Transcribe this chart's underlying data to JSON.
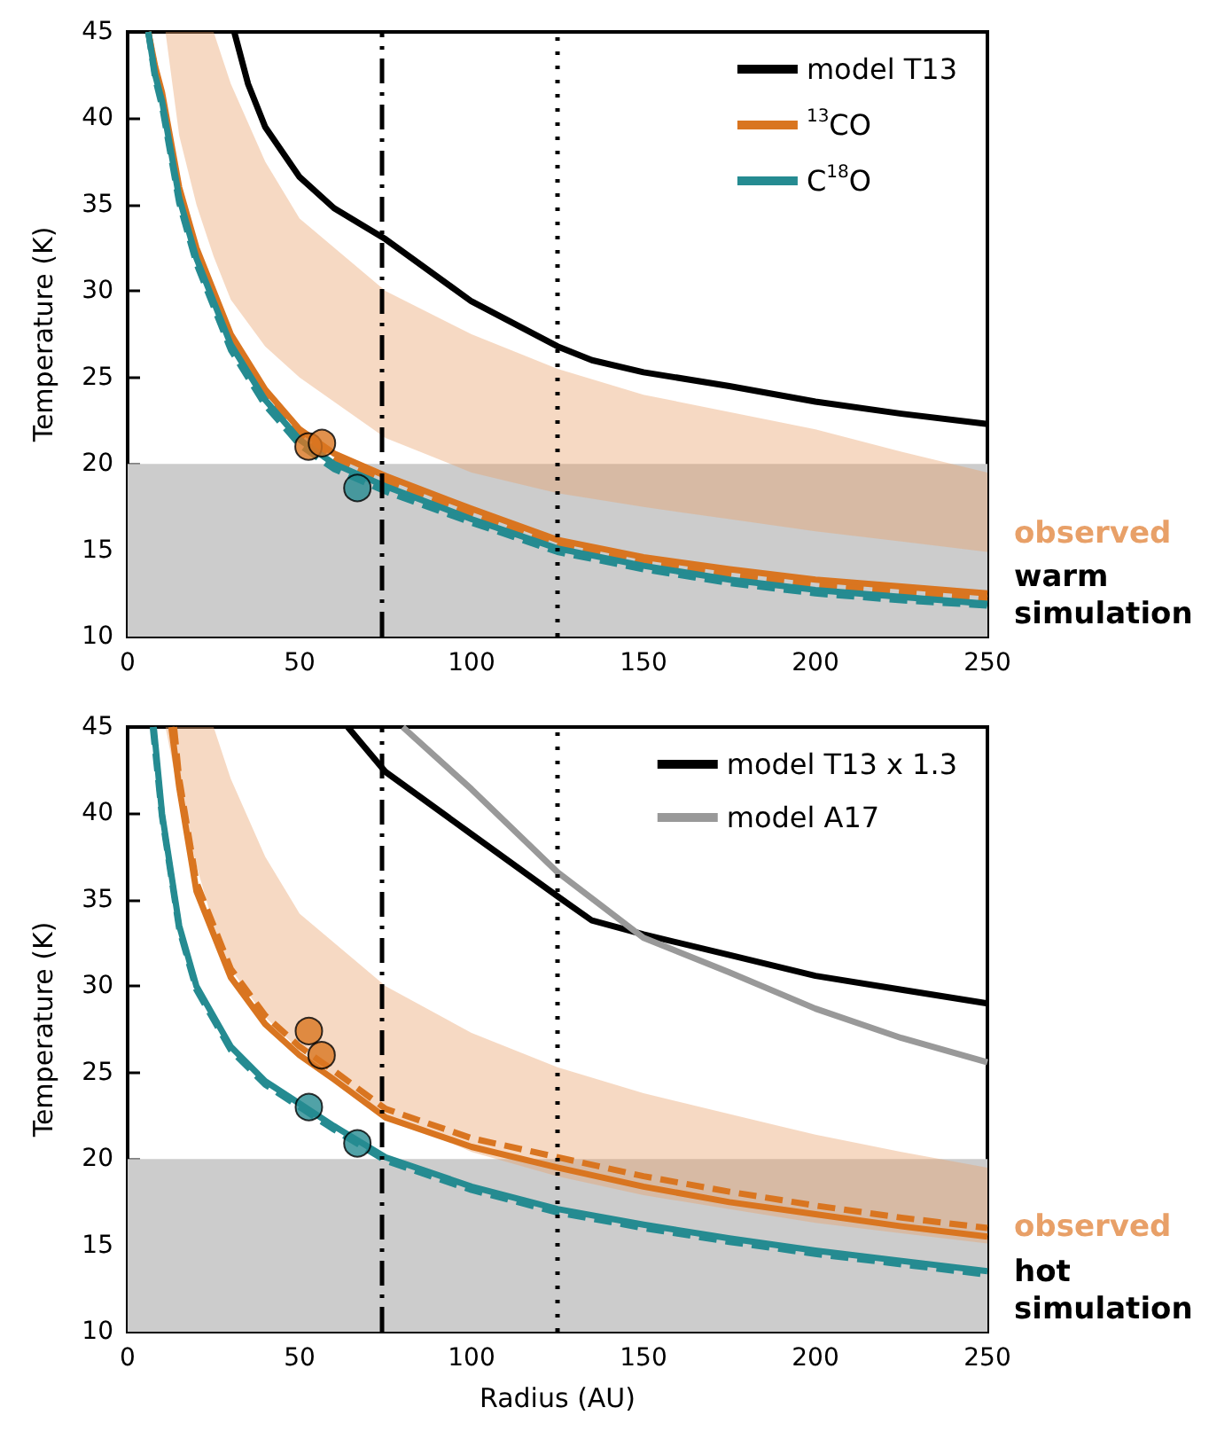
{
  "chart_data": [
    {
      "type": "line",
      "ylabel": "Temperature (K)",
      "xlim": [
        0,
        250
      ],
      "ylim": [
        10,
        45
      ],
      "xticks": [
        0,
        50,
        100,
        150,
        200,
        250
      ],
      "yticks": [
        10,
        15,
        20,
        25,
        30,
        35,
        40,
        45
      ],
      "legend": "top right",
      "bands": [
        {
          "axis": "y",
          "from": 10,
          "to": 20,
          "color": "#cccccc"
        }
      ],
      "ref_lines": [
        {
          "axis": "x",
          "value": 74,
          "color": "#000000",
          "line_style": "dashed"
        },
        {
          "axis": "x",
          "value": 125,
          "color": "#000000",
          "line_style": "dotted"
        }
      ],
      "annotations": [
        "warm simulation"
      ],
      "series": [
        {
          "type": "area",
          "name": "observed",
          "color": "#e8a068",
          "x": [
            11,
            15,
            20,
            25,
            30,
            40,
            50,
            75,
            100,
            125,
            150,
            175,
            200,
            225,
            250
          ],
          "values": [
            null,
            null,
            null,
            null,
            null,
            null,
            null,
            null,
            null,
            null,
            null,
            null,
            null,
            null,
            null
          ],
          "lower": [
            45,
            39,
            35,
            32,
            29.5,
            26.8,
            25,
            21.5,
            19.5,
            18.3,
            17.5,
            16.8,
            16.1,
            15.5,
            14.9
          ],
          "upper": [
            45,
            45,
            45,
            45,
            42,
            37.5,
            34.2,
            30,
            27.5,
            25.5,
            24,
            23,
            22,
            20.7,
            19.5
          ]
        },
        {
          "name": "model T13",
          "color": "#000000",
          "x": [
            31,
            35,
            40,
            50,
            60,
            75,
            100,
            125,
            135,
            150,
            175,
            200,
            225,
            250
          ],
          "values": [
            45,
            42,
            39.5,
            36.6,
            34.8,
            33,
            29.4,
            26.8,
            26,
            25.3,
            24.5,
            23.6,
            22.9,
            22.3
          ]
        },
        {
          "name": "$^{13}$CO",
          "color": "#d97520",
          "x": [
            6,
            8,
            10,
            15,
            20,
            30,
            40,
            50,
            60,
            75,
            100,
            125,
            150,
            175,
            200,
            225,
            250
          ],
          "values": [
            45,
            43,
            41.5,
            36,
            32.5,
            27.5,
            24.3,
            22,
            20.6,
            19.3,
            17.4,
            15.6,
            14.6,
            13.9,
            13.3,
            12.9,
            12.5
          ]
        },
        {
          "color": "#d97520",
          "line_style": "dashed",
          "x": [
            6,
            8,
            10,
            15,
            20,
            30,
            40,
            50,
            60,
            75,
            100,
            125,
            150,
            175,
            200,
            225,
            250
          ],
          "values": [
            45,
            42.8,
            41.2,
            35.7,
            32.2,
            27.2,
            24,
            21.7,
            20.3,
            19,
            17.1,
            15.3,
            14.3,
            13.6,
            13,
            12.6,
            12.2
          ]
        },
        {
          "name": "C$^{18}$O",
          "color": "#258b91",
          "x": [
            6,
            8,
            10,
            15,
            20,
            30,
            40,
            50,
            60,
            75,
            100,
            125,
            150,
            175,
            200,
            225,
            250
          ],
          "values": [
            45,
            42.5,
            41,
            35.4,
            31.9,
            26.9,
            23.7,
            21.4,
            20,
            18.7,
            16.8,
            15.1,
            14.1,
            13.3,
            12.7,
            12.3,
            11.9
          ]
        },
        {
          "color": "#258b91",
          "line_style": "dashed",
          "x": [
            6,
            8,
            10,
            15,
            20,
            30,
            40,
            50,
            60,
            75,
            100,
            125,
            150,
            175,
            200,
            225,
            250
          ],
          "values": [
            45,
            42.3,
            40.7,
            35.1,
            31.6,
            26.6,
            23.4,
            21.1,
            19.7,
            18.4,
            16.6,
            14.9,
            13.9,
            13.1,
            12.5,
            12.1,
            11.8
          ]
        },
        {
          "type": "scatter",
          "marker": "circle",
          "color": "#d97520",
          "x": [
            52.6,
            56.5
          ],
          "values": [
            21,
            21.2
          ]
        },
        {
          "type": "scatter",
          "marker": "circle",
          "color": "#258b91",
          "x": [
            66.8
          ],
          "values": [
            18.6
          ]
        }
      ]
    },
    {
      "type": "line",
      "xlabel": "Radius (AU)",
      "ylabel": "Temperature (K)",
      "xlim": [
        0,
        250
      ],
      "ylim": [
        10,
        45
      ],
      "xticks": [
        0,
        50,
        100,
        150,
        200,
        250
      ],
      "yticks": [
        10,
        15,
        20,
        25,
        30,
        35,
        40,
        45
      ],
      "legend": "top right",
      "bands": [
        {
          "axis": "y",
          "from": 10,
          "to": 20,
          "color": "#cccccc"
        }
      ],
      "ref_lines": [
        {
          "axis": "x",
          "value": 74,
          "color": "#000000",
          "line_style": "dashed"
        },
        {
          "axis": "x",
          "value": 125,
          "color": "#000000",
          "line_style": "dotted"
        }
      ],
      "annotations": [
        "hot simulation"
      ],
      "series": [
        {
          "type": "area",
          "name": "observed",
          "color": "#e8a068",
          "x": [
            11,
            15,
            20,
            25,
            30,
            40,
            50,
            75,
            100,
            125,
            150,
            175,
            200,
            225,
            250
          ],
          "values": [
            null,
            null,
            null,
            null,
            null,
            null,
            null,
            null,
            null,
            null,
            null,
            null,
            null,
            null,
            null
          ],
          "lower": [
            45,
            41,
            37,
            33.5,
            31,
            28.2,
            26.3,
            22.6,
            20.4,
            19,
            17.9,
            17.1,
            16.3,
            15.7,
            15.1
          ],
          "upper": [
            45,
            45,
            45,
            45,
            42,
            37.5,
            34.2,
            30,
            27.3,
            25.3,
            23.8,
            22.6,
            21.4,
            20.4,
            19.5
          ]
        },
        {
          "name": "model T13 x 1.3",
          "color": "#000000",
          "x": [
            64,
            75,
            100,
            125,
            135,
            150,
            175,
            200,
            225,
            250
          ],
          "values": [
            45,
            42.4,
            38.8,
            35.2,
            33.8,
            33,
            31.8,
            30.6,
            29.8,
            29
          ]
        },
        {
          "name": "model A17",
          "color": "#999999",
          "x": [
            80,
            100,
            125,
            150,
            175,
            200,
            225,
            250
          ],
          "values": [
            45,
            41.4,
            36.6,
            32.8,
            30.8,
            28.7,
            27,
            25.6
          ]
        },
        {
          "color": "#258b91",
          "line_style": "dashed",
          "x": [
            7.3,
            10,
            15,
            20,
            30,
            40,
            50,
            60,
            75,
            100,
            125,
            150,
            175,
            200,
            225,
            250
          ],
          "values": [
            45,
            39.8,
            33.3,
            29.8,
            26.3,
            24.3,
            23,
            21.7,
            19.9,
            18.2,
            16.9,
            16,
            15.2,
            14.5,
            13.9,
            13.3
          ]
        },
        {
          "color": "#258b91",
          "x": [
            7.6,
            10,
            15,
            20,
            30,
            40,
            50,
            60,
            75,
            100,
            125,
            150,
            175,
            200,
            225,
            250
          ],
          "values": [
            45,
            40,
            33.5,
            30,
            26.5,
            24.5,
            23.2,
            21.9,
            20.1,
            18.4,
            17.1,
            16.2,
            15.4,
            14.7,
            14.1,
            13.5
          ]
        },
        {
          "color": "#d97520",
          "line_style": "dashed",
          "x": [
            13.5,
            15,
            20,
            30,
            40,
            50,
            60,
            75,
            100,
            125,
            150,
            175,
            200,
            225,
            250
          ],
          "values": [
            45,
            42,
            36,
            31,
            28.3,
            26.5,
            25.1,
            22.9,
            21.2,
            20.1,
            19,
            18.1,
            17.3,
            16.6,
            16
          ]
        },
        {
          "color": "#d97520",
          "x": [
            12.7,
            15,
            20,
            30,
            40,
            50,
            60,
            75,
            100,
            125,
            150,
            175,
            200,
            225,
            250
          ],
          "values": [
            45,
            41.5,
            35.5,
            30.5,
            27.8,
            26,
            24.6,
            22.4,
            20.7,
            19.5,
            18.4,
            17.5,
            16.8,
            16.1,
            15.5
          ]
        },
        {
          "type": "scatter",
          "marker": "circle",
          "color": "#d97520",
          "x": [
            52.7,
            56.4
          ],
          "values": [
            27.4,
            26
          ]
        },
        {
          "type": "scatter",
          "marker": "circle",
          "color": "#258b91",
          "x": [
            52.7,
            66.8
          ],
          "values": [
            23,
            20.9
          ]
        }
      ]
    }
  ]
}
